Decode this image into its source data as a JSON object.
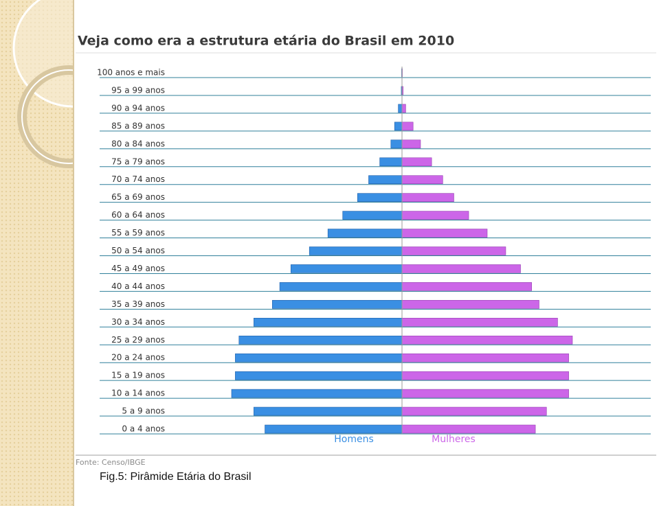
{
  "chart_data": {
    "type": "pyramid",
    "title": "Veja como era a estrutura etária do Brasil em 2010",
    "source": "Fonte: Censo/IBGE",
    "caption": "Fig.5: Pirâmide Etária do Brasil",
    "categories": [
      "0 a 4 anos",
      "5 a 9 anos",
      "10 a 14 anos",
      "15 a 19 anos",
      "20 a 24 anos",
      "25 a 29 anos",
      "30 a 34 anos",
      "35 a 39 anos",
      "40 a 44 anos",
      "45 a 49 anos",
      "50 a 54 anos",
      "55 a 59 anos",
      "60 a 64 anos",
      "65 a 69 anos",
      "70 a 74 anos",
      "75 a 79 anos",
      "80 a 84 anos",
      "85 a 89 anos",
      "90 a 94 anos",
      "95 a 99 anos",
      "100 anos e mais"
    ],
    "series": [
      {
        "name": "Homens",
        "color": "#3a8fe3",
        "values": [
          3.7,
          4.0,
          4.6,
          4.5,
          4.5,
          4.4,
          4.0,
          3.5,
          3.3,
          3.0,
          2.5,
          2.0,
          1.6,
          1.2,
          0.9,
          0.6,
          0.3,
          0.2,
          0.1,
          0.02,
          0.01
        ]
      },
      {
        "name": "Mulheres",
        "color": "#cc66e8",
        "values": [
          3.6,
          3.9,
          4.5,
          4.5,
          4.5,
          4.6,
          4.2,
          3.7,
          3.5,
          3.2,
          2.8,
          2.3,
          1.8,
          1.4,
          1.1,
          0.8,
          0.5,
          0.3,
          0.1,
          0.03,
          0.01
        ]
      }
    ]
  }
}
